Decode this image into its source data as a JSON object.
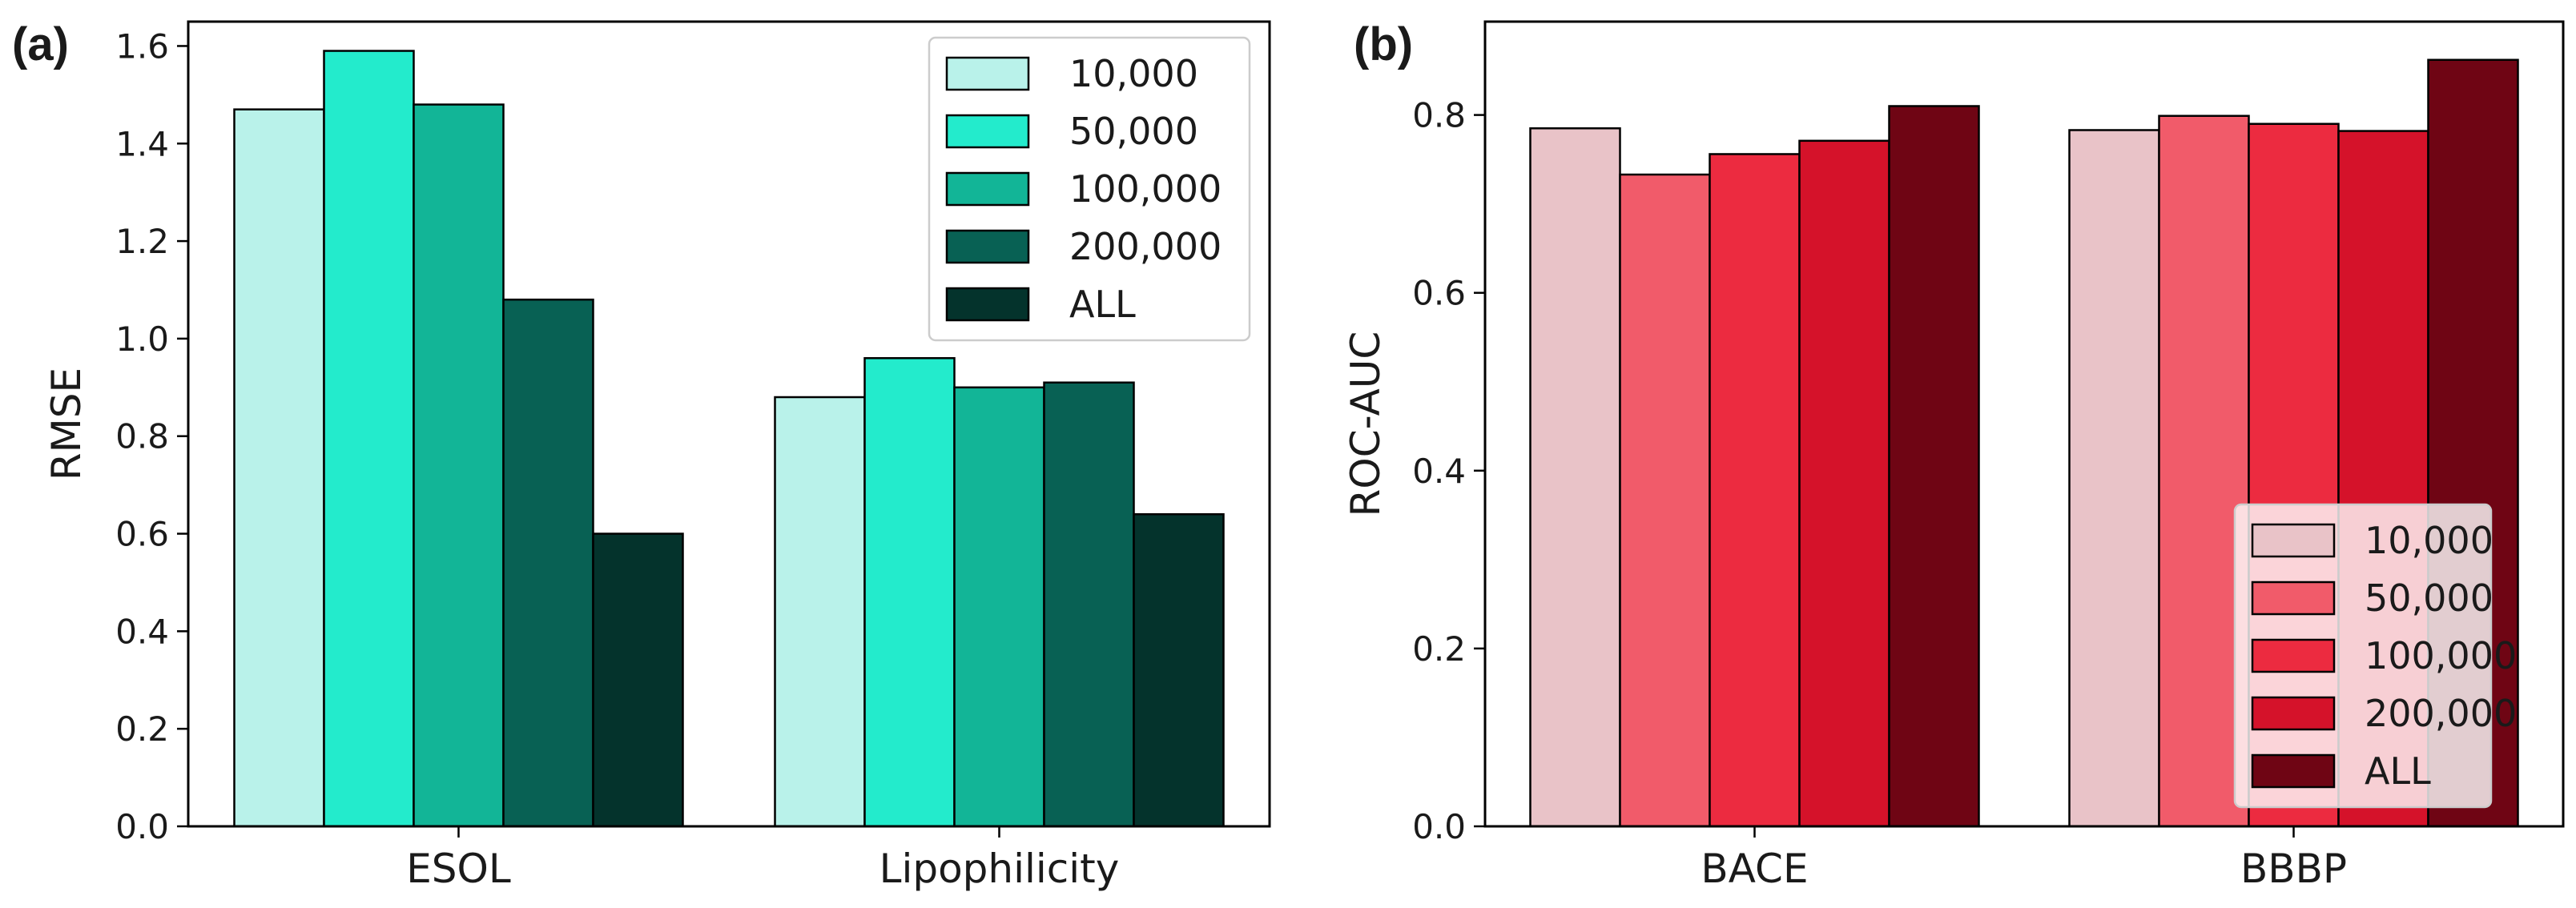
{
  "chart_data": [
    {
      "type": "bar",
      "panel_label": "(a)",
      "title": "",
      "xlabel": "",
      "ylabel": "RMSE",
      "ylim": [
        0,
        1.65
      ],
      "yticks": [
        "0.0",
        "0.2",
        "0.4",
        "0.6",
        "0.8",
        "1.0",
        "1.2",
        "1.4",
        "1.6"
      ],
      "categories": [
        "ESOL",
        "Lipophilicity"
      ],
      "legend_position": "top-right",
      "series": [
        {
          "name": "10,000",
          "color": "#b9f2ea",
          "values": [
            1.47,
            0.88
          ]
        },
        {
          "name": "50,000",
          "color": "#23ebcc",
          "values": [
            1.59,
            0.96
          ]
        },
        {
          "name": "100,000",
          "color": "#12b597",
          "values": [
            1.48,
            0.9
          ]
        },
        {
          "name": "200,000",
          "color": "#086154",
          "values": [
            1.08,
            0.91
          ]
        },
        {
          "name": "ALL",
          "color": "#04332c",
          "values": [
            0.6,
            0.64
          ]
        }
      ]
    },
    {
      "type": "bar",
      "panel_label": "(b)",
      "title": "",
      "xlabel": "",
      "ylabel": "ROC-AUC",
      "ylim": [
        0,
        0.905
      ],
      "yticks": [
        "0.0",
        "0.2",
        "0.4",
        "0.6",
        "0.8"
      ],
      "categories": [
        "BACE",
        "BBBP"
      ],
      "legend_position": "lower-right",
      "series": [
        {
          "name": "10,000",
          "color": "#e9c3c8",
          "values": [
            0.785,
            0.783
          ]
        },
        {
          "name": "50,000",
          "color": "#f15b6a",
          "values": [
            0.733,
            0.799
          ]
        },
        {
          "name": "100,000",
          "color": "#ec2b40",
          "values": [
            0.756,
            0.79
          ]
        },
        {
          "name": "200,000",
          "color": "#d5122a",
          "values": [
            0.771,
            0.782
          ]
        },
        {
          "name": "ALL",
          "color": "#6f0514",
          "values": [
            0.81,
            0.862
          ]
        }
      ]
    }
  ]
}
